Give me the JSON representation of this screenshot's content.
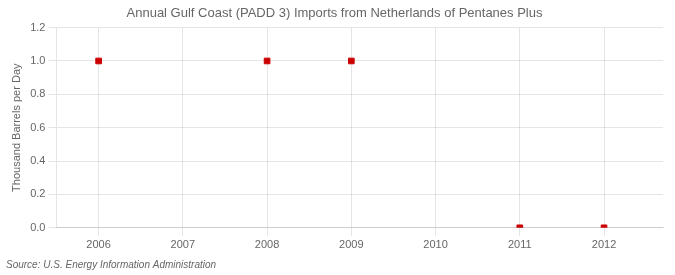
{
  "chart_data": {
    "type": "scatter",
    "title": "Annual Gulf Coast (PADD 3) Imports from Netherlands of Pentanes Plus",
    "ylabel": "Thousand Barrels per Day",
    "source": "Source: U.S. Energy Information Administration",
    "x": [
      2006,
      2008,
      2009,
      2011,
      2012
    ],
    "values": [
      1.0,
      1.0,
      1.0,
      0.0,
      0.0
    ],
    "color": "#cc0000",
    "marker": "square",
    "xlim": [
      2005.5,
      2012.7
    ],
    "xticks": [
      2006,
      2007,
      2008,
      2009,
      2010,
      2011,
      2012
    ],
    "ylim": [
      0.0,
      1.2
    ],
    "yticks": [
      {
        "value": 0.0,
        "label": "0.0"
      },
      0.2,
      0.4,
      0.6,
      0.8,
      {
        "value": 1.0,
        "label": "1.0"
      },
      1.2
    ],
    "grid": true
  }
}
